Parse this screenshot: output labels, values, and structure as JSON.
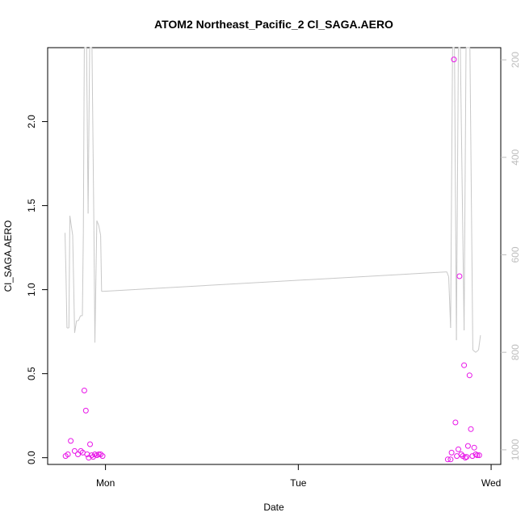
{
  "chart_data": {
    "type": "scatter",
    "title": "ATOM2 Northeast_Pacific_2 Cl_SAGA.AERO",
    "xlabel": "Date",
    "ylabel": "Cl_SAGA.AERO",
    "x_ticks": [
      "Mon",
      "Tue",
      "Wed"
    ],
    "x_tick_values": [
      1.0,
      2.0,
      3.0
    ],
    "xlim": [
      0.7,
      3.05
    ],
    "ylim": [
      -0.04,
      2.44
    ],
    "y_ticks": [
      0.0,
      0.5,
      1.0,
      1.5,
      2.0
    ],
    "y_tick_labels": [
      "0.0",
      "0.5",
      "1.0",
      "1.5",
      "2.0"
    ],
    "right_axis": {
      "ylim": [
        1030,
        175
      ],
      "reversed": true,
      "ticks": [
        200,
        400,
        600,
        800,
        1000
      ],
      "tick_labels": [
        "200",
        "400",
        "600",
        "800",
        "1000"
      ],
      "color": "#bdbdbd"
    },
    "series": [
      {
        "type": "scatter",
        "axis": "left",
        "color": "#e815e8",
        "x": [
          0.793,
          0.805,
          0.82,
          0.84,
          0.857,
          0.872,
          0.882,
          0.89,
          0.898,
          0.905,
          0.913,
          0.92,
          0.928,
          0.936,
          0.945,
          0.955,
          0.965,
          0.975,
          0.985,
          2.775,
          2.79,
          2.795,
          2.807,
          2.815,
          2.822,
          2.83,
          2.836,
          2.845,
          2.853,
          2.86,
          2.866,
          2.873,
          2.88,
          2.888,
          2.895,
          2.903,
          2.912,
          2.92,
          2.928,
          2.938
        ],
        "y": [
          0.01,
          0.02,
          0.1,
          0.04,
          0.02,
          0.04,
          0.03,
          0.4,
          0.28,
          0.02,
          0.0,
          0.08,
          0.015,
          0.005,
          0.02,
          0.015,
          0.02,
          0.02,
          0.01,
          -0.01,
          -0.01,
          0.03,
          2.37,
          0.21,
          0.01,
          0.05,
          1.08,
          0.02,
          0.01,
          0.55,
          0.0,
          0.005,
          0.07,
          0.49,
          0.17,
          0.01,
          0.06,
          0.02,
          0.015,
          0.015
        ]
      },
      {
        "type": "line",
        "axis": "right",
        "color": "#c8c8c8",
        "x": [
          0.79,
          0.795,
          0.8,
          0.81,
          0.815,
          0.83,
          0.84,
          0.85,
          0.86,
          0.87,
          0.88,
          0.885,
          0.89,
          0.902,
          0.91,
          0.918,
          0.93,
          0.94,
          0.945,
          0.955,
          0.965,
          0.975,
          0.98,
          2.77,
          2.78,
          2.79,
          2.8,
          2.81,
          2.82,
          2.83,
          2.84,
          2.85,
          2.86,
          2.87,
          2.88,
          2.89,
          2.905,
          2.92,
          2.935,
          2.945
        ],
        "y": [
          555,
          640,
          750,
          750,
          520,
          560,
          760,
          735,
          735,
          725,
          725,
          555,
          175,
          175,
          515,
          175,
          175,
          550,
          780,
          530,
          540,
          560,
          675,
          635,
          645,
          750,
          175,
          175,
          775,
          175,
          175,
          470,
          755,
          175,
          175,
          175,
          795,
          800,
          795,
          765
        ]
      }
    ]
  }
}
